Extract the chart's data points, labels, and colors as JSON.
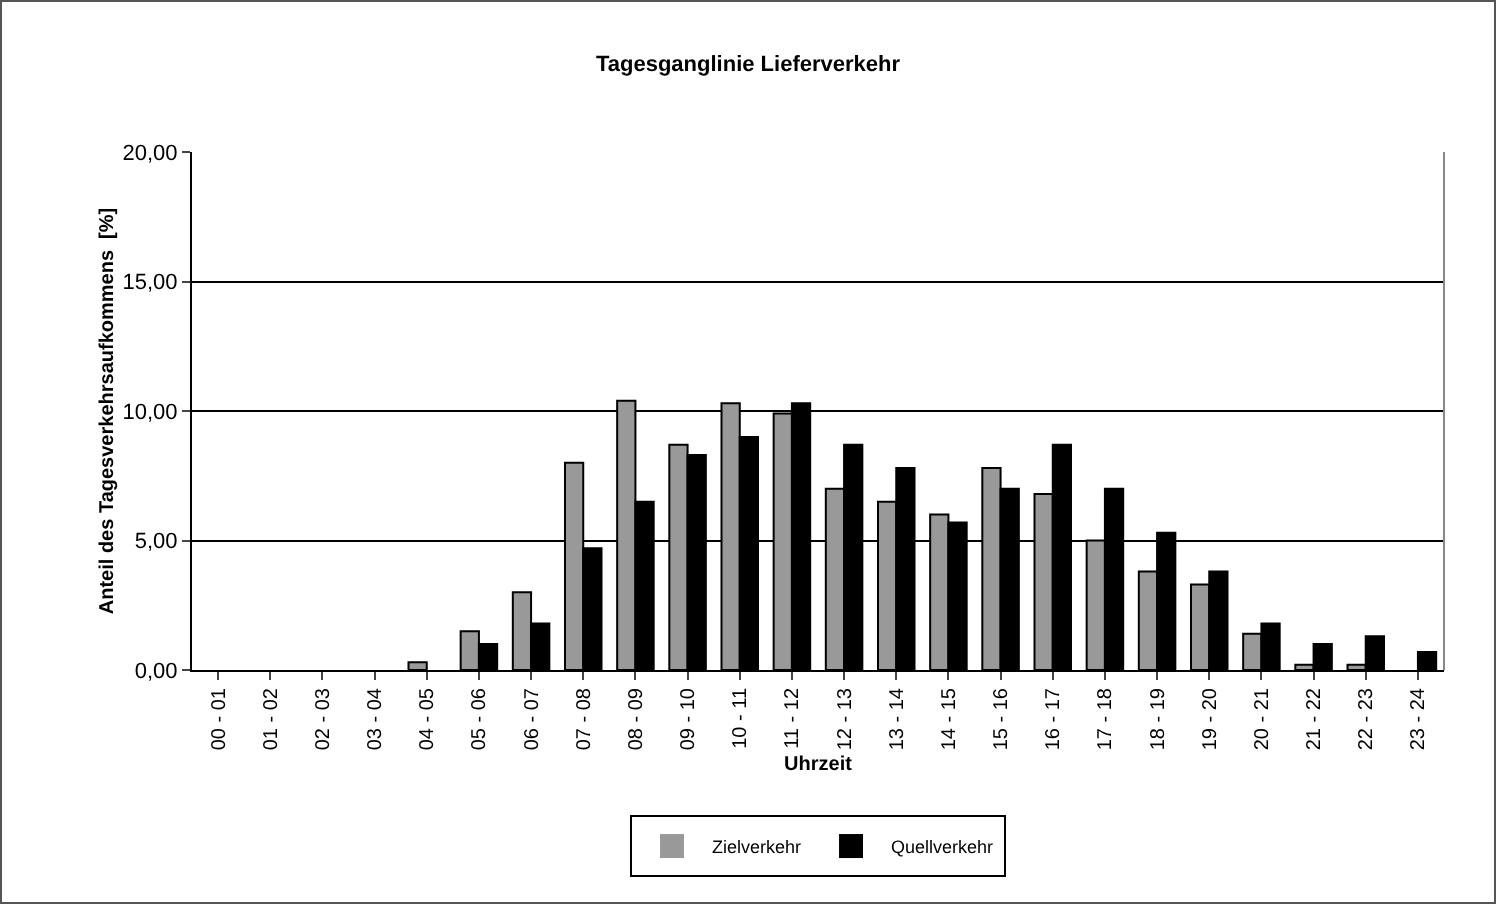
{
  "chart_data": {
    "type": "bar",
    "title": "Tagesganglinie Lieferverkehr",
    "xlabel": "Uhrzeit",
    "ylabel": "Anteil des Tagesverkehrsaufkommens  [%]",
    "categories": [
      "00 - 01",
      "01 - 02",
      "02 - 03",
      "03 - 04",
      "04 - 05",
      "05 - 06",
      "06 - 07",
      "07 - 08",
      "08 - 09",
      "09 - 10",
      "10 - 11",
      "11 - 12",
      "12 - 13",
      "13 - 14",
      "14 - 15",
      "15 - 16",
      "16 - 17",
      "17 - 18",
      "18 - 19",
      "19 - 20",
      "20 - 21",
      "21 - 22",
      "22 - 23",
      "23 - 24"
    ],
    "series": [
      {
        "name": "Zielverkehr",
        "color": "#999999",
        "values": [
          0,
          0,
          0,
          0,
          0.3,
          1.5,
          3.0,
          8.0,
          10.4,
          8.7,
          10.3,
          9.9,
          7.0,
          6.5,
          6.0,
          7.8,
          6.8,
          5.0,
          3.8,
          3.3,
          1.4,
          0.2,
          0.2,
          0
        ]
      },
      {
        "name": "Quellverkehr",
        "color": "#000000",
        "values": [
          0,
          0,
          0,
          0,
          0,
          1.0,
          1.8,
          4.7,
          6.5,
          8.3,
          9.0,
          10.3,
          8.7,
          7.8,
          5.7,
          7.0,
          8.7,
          7.0,
          5.3,
          3.8,
          1.8,
          1.0,
          1.3,
          0.7
        ]
      }
    ],
    "ylim": [
      0,
      20
    ],
    "yticks": [
      {
        "value": 0,
        "label": "0,00"
      },
      {
        "value": 5,
        "label": "5,00"
      },
      {
        "value": 10,
        "label": "10,00"
      },
      {
        "value": 15,
        "label": "15,00"
      },
      {
        "value": 20,
        "label": "20,00"
      }
    ],
    "grid": "y",
    "legend": "bottom"
  }
}
